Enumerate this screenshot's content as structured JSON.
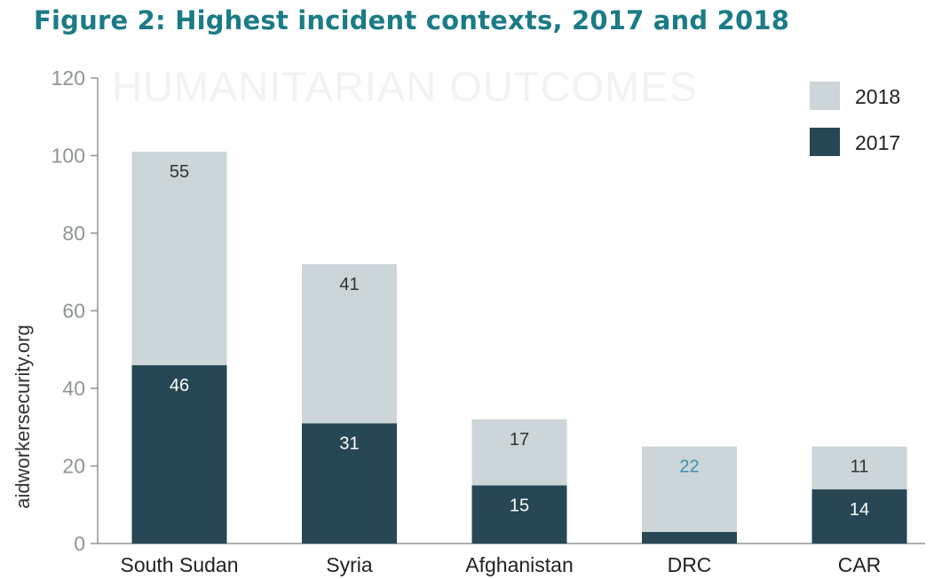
{
  "chart_data": {
    "type": "bar",
    "stacked": true,
    "title": "Figure 2: Highest incident contexts, 2017 and 2018",
    "watermark": "HUMANITARIAN OUTCOMES",
    "ylabel": "aidworkersecurity.org",
    "xlabel": "",
    "ylim": [
      0,
      120
    ],
    "yticks": [
      0,
      20,
      40,
      60,
      80,
      100,
      120
    ],
    "grid": false,
    "legend_position": "top-right",
    "categories": [
      "South Sudan",
      "Syria",
      "Afghanistan",
      "DRC",
      "CAR"
    ],
    "series": [
      {
        "name": "2017",
        "color": "#264753",
        "label_color": "#ffffff",
        "values": [
          46,
          31,
          15,
          3,
          14
        ]
      },
      {
        "name": "2018",
        "color": "#ccd5d8",
        "label_color": "#333333",
        "values": [
          55,
          41,
          17,
          22,
          11
        ]
      }
    ],
    "label_overrides": {
      "1.3": "#3a8fb0"
    },
    "legend_order": [
      "2018",
      "2017"
    ]
  }
}
